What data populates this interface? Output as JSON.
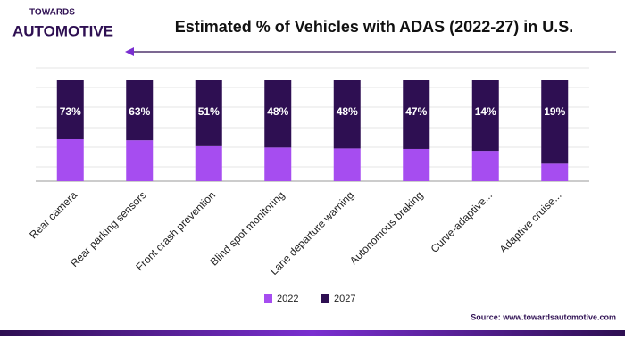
{
  "logo": {
    "line1": "TOWARDS",
    "line2": "AUTOMOTIVE"
  },
  "chart_data": {
    "type": "bar",
    "stacked": "percent",
    "title": "Estimated % of Vehicles with ADAS (2022-27) in U.S.",
    "categories": [
      "Rear camera",
      "Rear parking sensors",
      "Front crash prevention",
      "Blind spot monitoring",
      "Lane departure warning",
      "Autonomous braking",
      "Curve-adaptive...",
      "Adaptive cruise..."
    ],
    "series": [
      {
        "name": "2022",
        "color": "#a64df0",
        "values": [
          52,
          43,
          27,
          24,
          23,
          22,
          6,
          4
        ]
      },
      {
        "name": "2027",
        "color": "#2e0f52",
        "values": [
          73,
          63,
          51,
          48,
          48,
          47,
          14,
          19
        ],
        "value_labels": [
          "73%",
          "63%",
          "51%",
          "48%",
          "48%",
          "47%",
          "14%",
          "19%"
        ]
      }
    ],
    "source": "Source: www.towardsautomotive.com"
  }
}
